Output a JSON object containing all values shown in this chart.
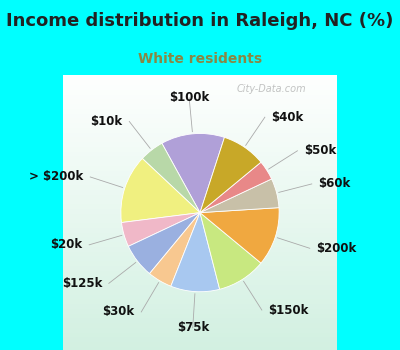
{
  "title": "Income distribution in Raleigh, NC (%)",
  "subtitle": "White residents",
  "title_color": "#222222",
  "subtitle_color": "#888844",
  "bg_color": "#00FFFF",
  "chart_bg_top": "#e8f5ee",
  "watermark": "City-Data.com",
  "labels": [
    "$100k",
    "$10k",
    "> $200k",
    "$20k",
    "$125k",
    "$30k",
    "$75k",
    "$150k",
    "$200k",
    "$60k",
    "$50k",
    "$40k"
  ],
  "values": [
    13,
    5,
    14,
    5,
    7,
    5,
    10,
    10,
    12,
    6,
    4,
    9
  ],
  "colors": [
    "#b0a0d8",
    "#b8d8a8",
    "#f0f080",
    "#f0b8c8",
    "#9ab0e0",
    "#f8c890",
    "#a8c8f0",
    "#c8e880",
    "#f0a840",
    "#c8c0a8",
    "#e88888",
    "#c8a828"
  ],
  "startangle": 72,
  "title_fontsize": 13,
  "subtitle_fontsize": 10,
  "label_fontsize": 8.5
}
